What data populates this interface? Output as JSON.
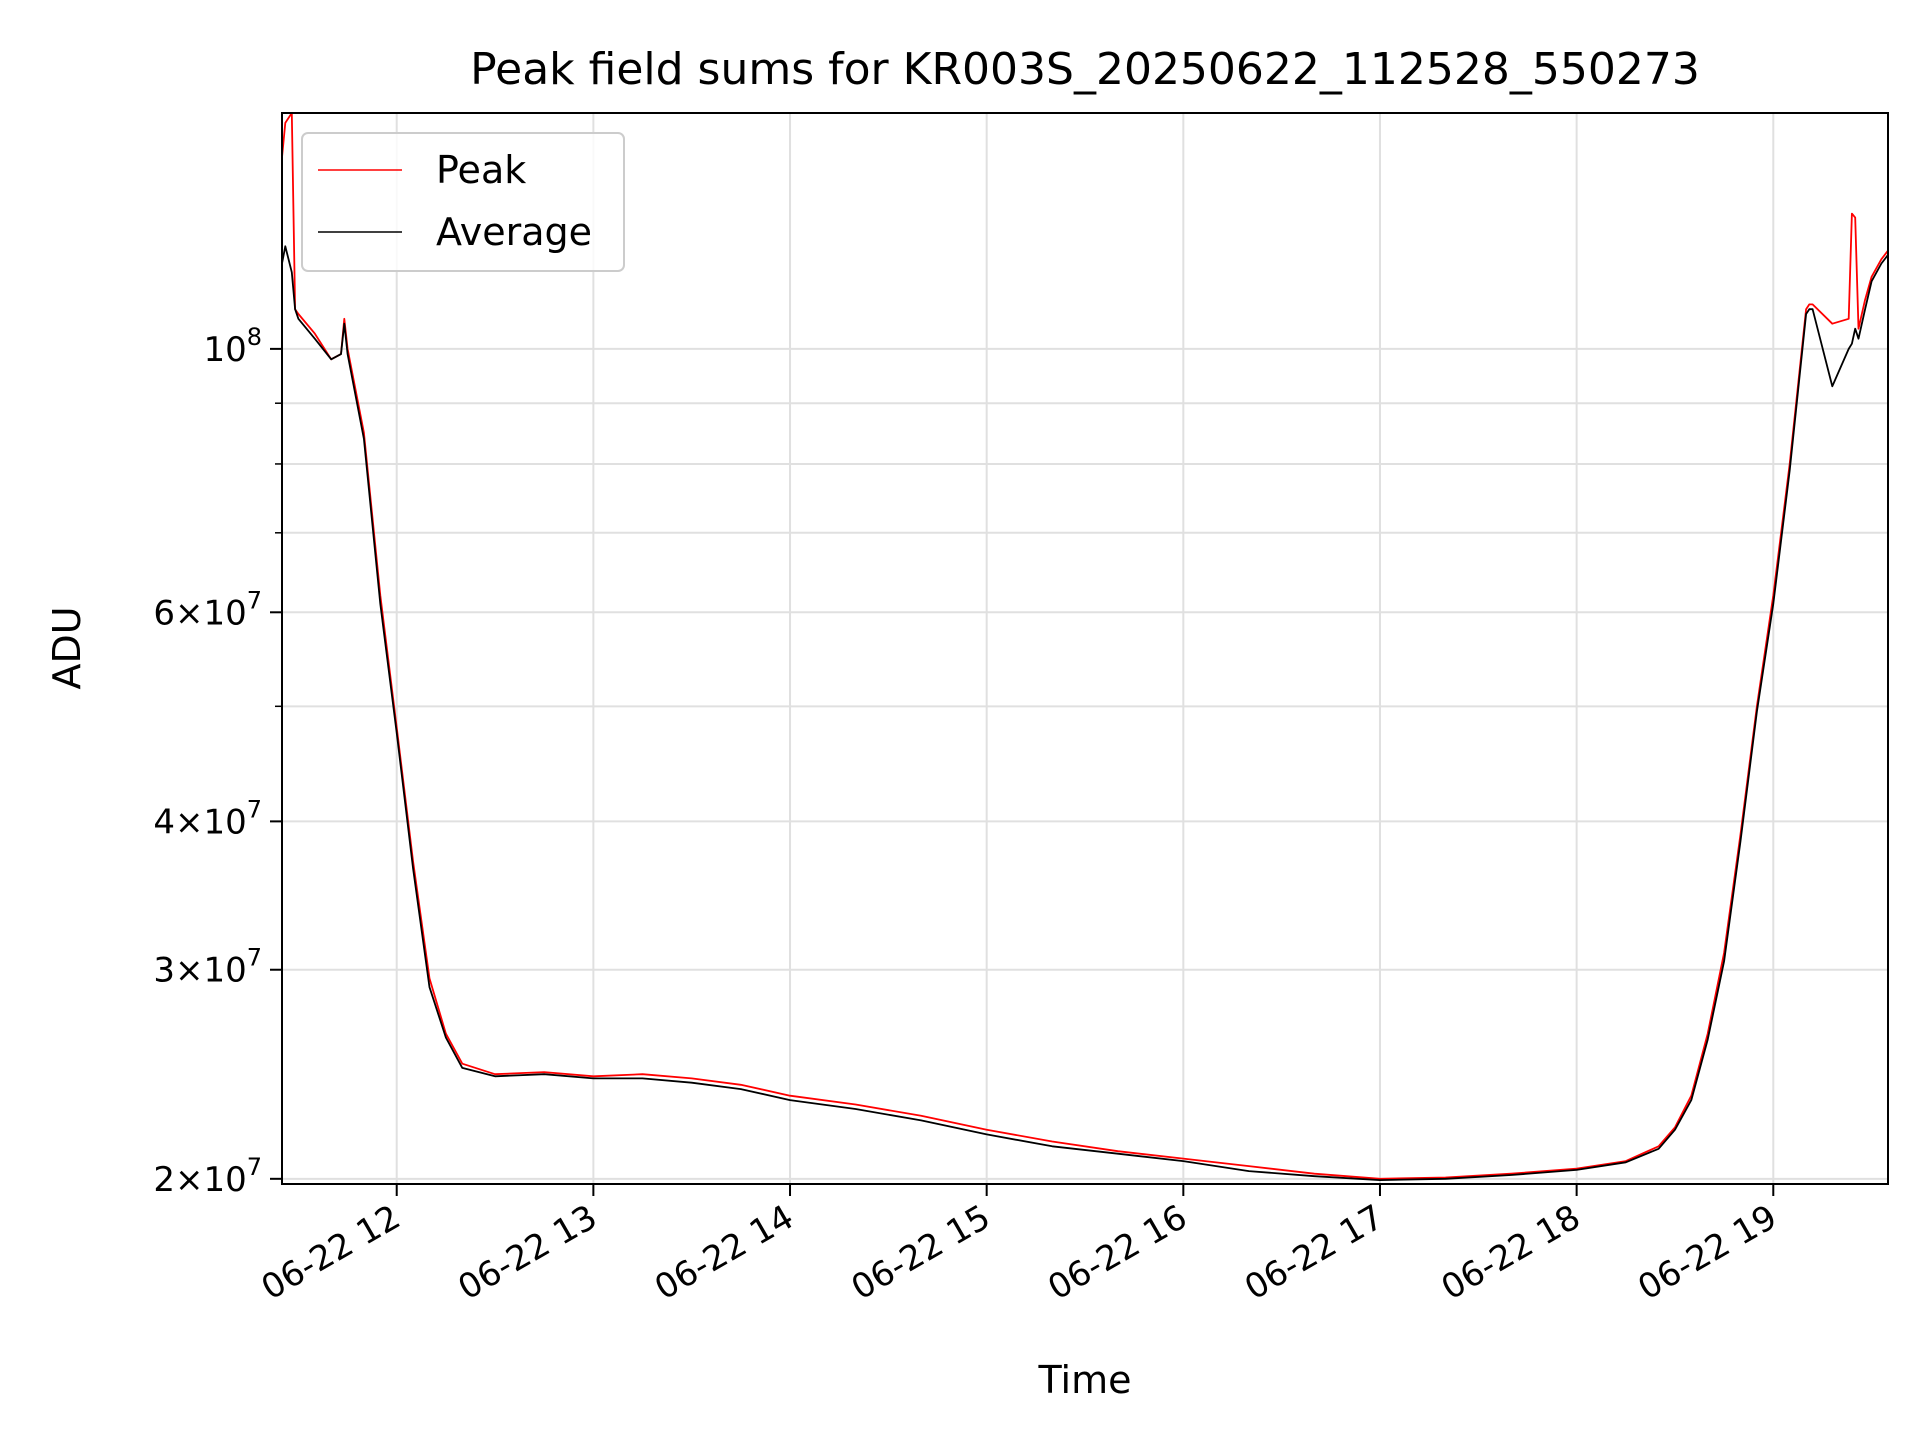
{
  "chart_data": {
    "type": "line",
    "title": "Peak field sums for KR003S_20250622_112528_550273",
    "xlabel": "Time",
    "ylabel": "ADU",
    "yscale": "log",
    "xlim": [
      "2025-06-22 11:25",
      "2025-06-22 19:35"
    ],
    "ylim": [
      19800000,
      158000000
    ],
    "x_ticks": [
      {
        "value": "2025-06-22 12:00",
        "label": "06-22 12"
      },
      {
        "value": "2025-06-22 13:00",
        "label": "06-22 13"
      },
      {
        "value": "2025-06-22 14:00",
        "label": "06-22 14"
      },
      {
        "value": "2025-06-22 15:00",
        "label": "06-22 15"
      },
      {
        "value": "2025-06-22 16:00",
        "label": "06-22 16"
      },
      {
        "value": "2025-06-22 17:00",
        "label": "06-22 17"
      },
      {
        "value": "2025-06-22 18:00",
        "label": "06-22 18"
      },
      {
        "value": "2025-06-22 19:00",
        "label": "06-22 19"
      }
    ],
    "y_ticks": [
      {
        "value": 20000000,
        "mantissa": "2",
        "exponent": "7"
      },
      {
        "value": 30000000,
        "mantissa": "3",
        "exponent": "7"
      },
      {
        "value": 40000000,
        "mantissa": "4",
        "exponent": "7"
      },
      {
        "value": 60000000,
        "mantissa": "6",
        "exponent": "7"
      },
      {
        "value": 100000000,
        "mantissa": "",
        "exponent": "8"
      }
    ],
    "y_minor_ticks": [
      50000000,
      70000000,
      80000000,
      90000000
    ],
    "grid": true,
    "legend_position": "upper-left",
    "series": [
      {
        "name": "Peak",
        "color": "#ff0000",
        "x": [
          "2025-06-22 11:25",
          "2025-06-22 11:26",
          "2025-06-22 11:28",
          "2025-06-22 11:29",
          "2025-06-22 11:30",
          "2025-06-22 11:35",
          "2025-06-22 11:40",
          "2025-06-22 11:43",
          "2025-06-22 11:44",
          "2025-06-22 11:45",
          "2025-06-22 11:50",
          "2025-06-22 11:55",
          "2025-06-22 12:00",
          "2025-06-22 12:05",
          "2025-06-22 12:10",
          "2025-06-22 12:15",
          "2025-06-22 12:20",
          "2025-06-22 12:30",
          "2025-06-22 12:45",
          "2025-06-22 13:00",
          "2025-06-22 13:15",
          "2025-06-22 13:30",
          "2025-06-22 13:45",
          "2025-06-22 14:00",
          "2025-06-22 14:20",
          "2025-06-22 14:40",
          "2025-06-22 15:00",
          "2025-06-22 15:20",
          "2025-06-22 15:40",
          "2025-06-22 16:00",
          "2025-06-22 16:20",
          "2025-06-22 16:40",
          "2025-06-22 17:00",
          "2025-06-22 17:20",
          "2025-06-22 17:40",
          "2025-06-22 18:00",
          "2025-06-22 18:15",
          "2025-06-22 18:25",
          "2025-06-22 18:30",
          "2025-06-22 18:35",
          "2025-06-22 18:40",
          "2025-06-22 18:45",
          "2025-06-22 18:50",
          "2025-06-22 18:55",
          "2025-06-22 19:00",
          "2025-06-22 19:05",
          "2025-06-22 19:10",
          "2025-06-22 19:11",
          "2025-06-22 19:12",
          "2025-06-22 19:18",
          "2025-06-22 19:23",
          "2025-06-22 19:24",
          "2025-06-22 19:25",
          "2025-06-22 19:26",
          "2025-06-22 19:28",
          "2025-06-22 19:30",
          "2025-06-22 19:33",
          "2025-06-22 19:35"
        ],
        "y": [
          145000000,
          155000000,
          158000000,
          108000000,
          107000000,
          103000000,
          98000000,
          99000000,
          106000000,
          100000000,
          85000000,
          62000000,
          48000000,
          37000000,
          29500000,
          26500000,
          25000000,
          24500000,
          24600000,
          24400000,
          24500000,
          24300000,
          24000000,
          23500000,
          23100000,
          22600000,
          22000000,
          21500000,
          21100000,
          20800000,
          20500000,
          20200000,
          20000000,
          20050000,
          20200000,
          20400000,
          20700000,
          21300000,
          22100000,
          23500000,
          26500000,
          31000000,
          39000000,
          50000000,
          62000000,
          80000000,
          108000000,
          109000000,
          109000000,
          105000000,
          106000000,
          130000000,
          129000000,
          104000000,
          110000000,
          115000000,
          119000000,
          121000000
        ]
      },
      {
        "name": "Average",
        "color": "#000000",
        "x": [
          "2025-06-22 11:25",
          "2025-06-22 11:26",
          "2025-06-22 11:28",
          "2025-06-22 11:29",
          "2025-06-22 11:30",
          "2025-06-22 11:35",
          "2025-06-22 11:40",
          "2025-06-22 11:43",
          "2025-06-22 11:44",
          "2025-06-22 11:45",
          "2025-06-22 11:50",
          "2025-06-22 11:55",
          "2025-06-22 12:00",
          "2025-06-22 12:05",
          "2025-06-22 12:10",
          "2025-06-22 12:15",
          "2025-06-22 12:20",
          "2025-06-22 12:30",
          "2025-06-22 12:45",
          "2025-06-22 13:00",
          "2025-06-22 13:15",
          "2025-06-22 13:30",
          "2025-06-22 13:45",
          "2025-06-22 14:00",
          "2025-06-22 14:20",
          "2025-06-22 14:40",
          "2025-06-22 15:00",
          "2025-06-22 15:20",
          "2025-06-22 15:40",
          "2025-06-22 16:00",
          "2025-06-22 16:20",
          "2025-06-22 16:40",
          "2025-06-22 17:00",
          "2025-06-22 17:20",
          "2025-06-22 17:40",
          "2025-06-22 18:00",
          "2025-06-22 18:15",
          "2025-06-22 18:25",
          "2025-06-22 18:30",
          "2025-06-22 18:35",
          "2025-06-22 18:40",
          "2025-06-22 18:45",
          "2025-06-22 18:50",
          "2025-06-22 18:55",
          "2025-06-22 19:00",
          "2025-06-22 19:05",
          "2025-06-22 19:10",
          "2025-06-22 19:11",
          "2025-06-22 19:12",
          "2025-06-22 19:18",
          "2025-06-22 19:23",
          "2025-06-22 19:24",
          "2025-06-22 19:25",
          "2025-06-22 19:26",
          "2025-06-22 19:28",
          "2025-06-22 19:30",
          "2025-06-22 19:33",
          "2025-06-22 19:35"
        ],
        "y": [
          118000000,
          122000000,
          116000000,
          108000000,
          106000000,
          102000000,
          98000000,
          99000000,
          105000000,
          99000000,
          84000000,
          61000000,
          47500000,
          36500000,
          29000000,
          26300000,
          24800000,
          24400000,
          24500000,
          24300000,
          24300000,
          24100000,
          23800000,
          23300000,
          22900000,
          22400000,
          21800000,
          21300000,
          21000000,
          20700000,
          20300000,
          20100000,
          19950000,
          20000000,
          20150000,
          20350000,
          20650000,
          21200000,
          22000000,
          23300000,
          26200000,
          30500000,
          38500000,
          49500000,
          61000000,
          79000000,
          107000000,
          108000000,
          108000000,
          93000000,
          100000000,
          101000000,
          104000000,
          102000000,
          108000000,
          114000000,
          118000000,
          120000000
        ]
      }
    ]
  }
}
